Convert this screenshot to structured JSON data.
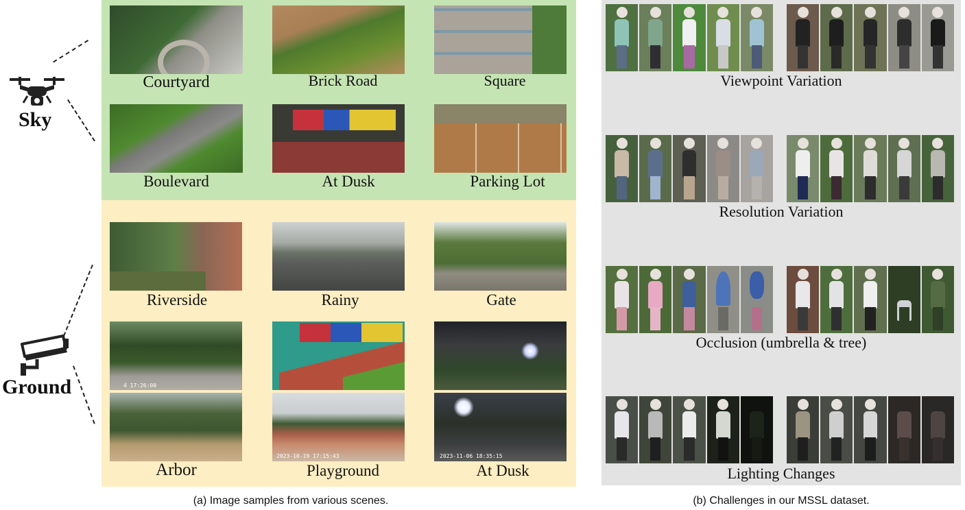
{
  "sky": {
    "label": "Sky",
    "scenes": [
      "Courtyard",
      "Brick Road",
      "Square",
      "Boulevard",
      "At Dusk",
      "Parking Lot"
    ]
  },
  "ground": {
    "label": "Ground",
    "scenes": [
      "Riverside",
      "Rainy",
      "Gate",
      "Arbor",
      "Playground",
      "At Dusk"
    ],
    "timestamps": [
      "4 17:26:00",
      "2023-10-19 17:15:43",
      "2023-11-06 18:35:15"
    ]
  },
  "challenges": [
    "Viewpoint Variation",
    "Resolution Variation",
    "Occlusion (umbrella & tree)",
    "Lighting Changes"
  ],
  "captions": {
    "left": "(a) Image samples from various scenes.",
    "right": "(b) Challenges in our MSSL dataset."
  },
  "colors": {
    "sky_panel": "#c5e4b3",
    "ground_panel": "#fdeec3",
    "challenge_panel": "#e3e3e3"
  },
  "icons": [
    "drone-icon",
    "cctv-camera-icon"
  ]
}
